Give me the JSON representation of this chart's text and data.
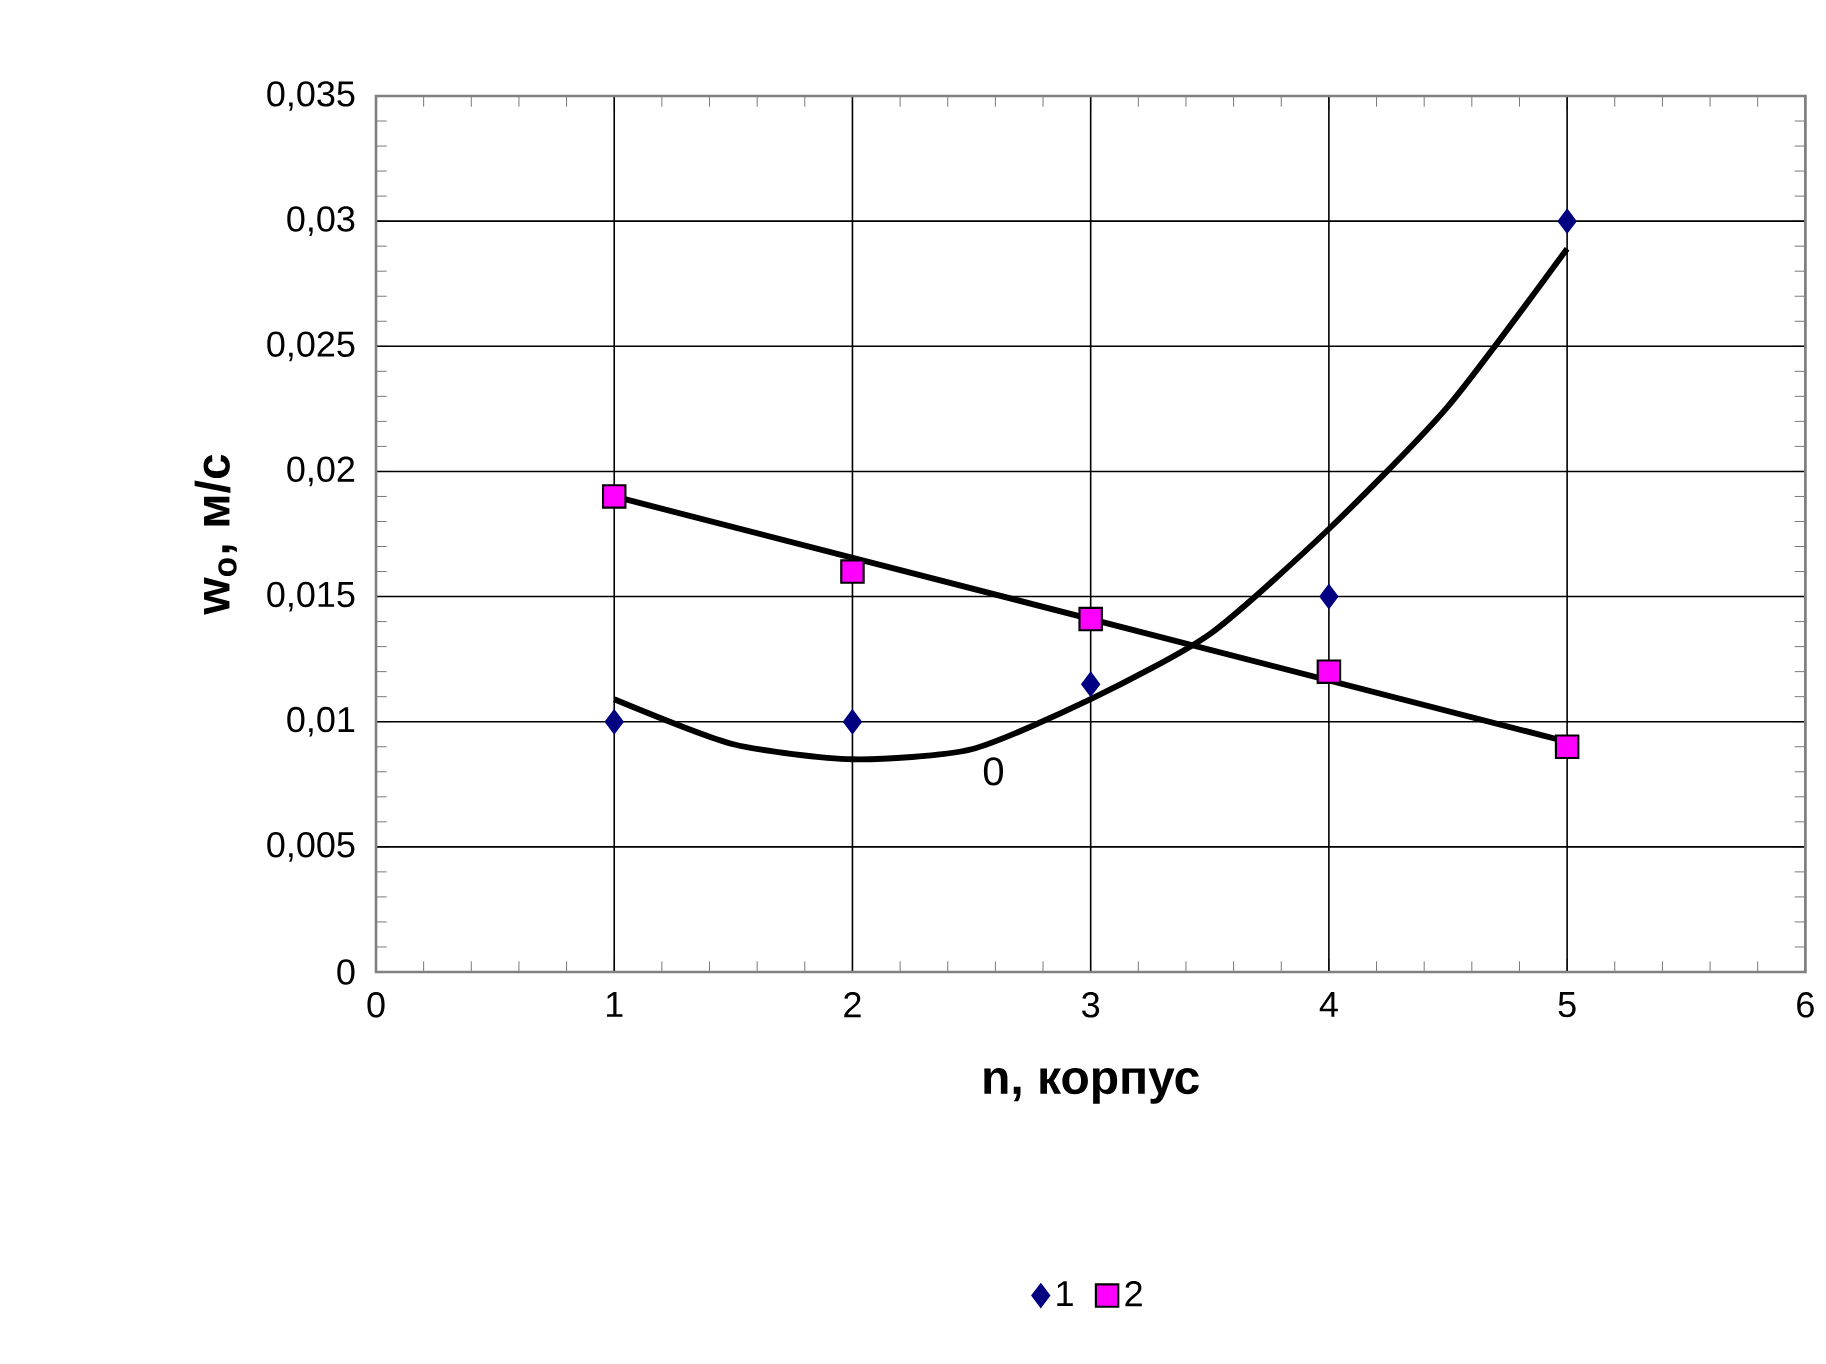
{
  "chart_data": {
    "type": "scatter",
    "xlabel": "n, корпус",
    "ylabel": "w$_{o}$, м/с",
    "x": [
      1,
      2,
      3,
      4,
      5
    ],
    "series": [
      {
        "name": "1",
        "marker": "diamond",
        "color": "#000080",
        "values": [
          0.01,
          0.01,
          0.0115,
          0.015,
          0.03
        ]
      },
      {
        "name": "2",
        "marker": "square",
        "color": "#ff00ff",
        "values": [
          0.019,
          0.016,
          0.0141,
          0.012,
          0.009
        ]
      },
      {
        "type": "line",
        "color": "#000000",
        "x": [
          1,
          1.5,
          2,
          2.5,
          3,
          3.5,
          4,
          4.5,
          5
        ],
        "values": [
          0.0109,
          0.0091,
          0.0085,
          0.0089,
          0.0109,
          0.0135,
          0.0177,
          0.0226,
          0.0289
        ]
      },
      {
        "type": "line",
        "color": "#000000",
        "x": [
          1,
          5
        ],
        "values": [
          0.019,
          0.0092
        ]
      }
    ],
    "xlim": [
      0,
      6
    ],
    "xticks": [
      0,
      1,
      2,
      3,
      4,
      5,
      6
    ],
    "ylim": [
      0,
      0.035
    ],
    "yticks": [
      0,
      {
        "value": 0.005,
        "label": "0,005"
      },
      {
        "value": 0.01,
        "label": "0,01"
      },
      {
        "value": 0.015,
        "label": "0,015"
      },
      {
        "value": 0.02,
        "label": "0,02"
      },
      {
        "value": 0.025,
        "label": "0,025"
      },
      {
        "value": 0.03,
        "label": "0,03"
      },
      {
        "value": 0.035,
        "label": "0,035"
      }
    ],
    "annotations": [
      "0"
    ],
    "grid": true,
    "legend": "bottom"
  }
}
